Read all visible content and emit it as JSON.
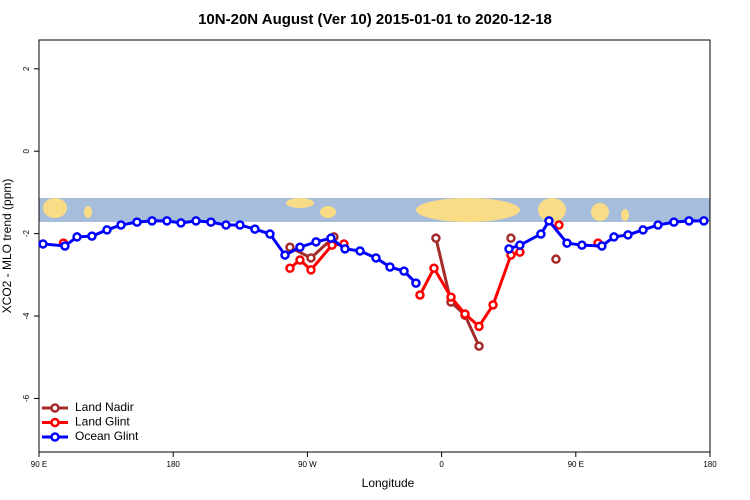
{
  "chart_data": {
    "type": "line",
    "title": "10N-20N August (Ver 10)   2015-01-01 to 2020-12-18",
    "x_label": "Longitude",
    "y_label": "XCO2 - MLO trend (ppm)",
    "xlim": [
      -270,
      180
    ],
    "xticks": [
      {
        "value": -270,
        "label": "90 E"
      },
      {
        "value": -180,
        "label": "180"
      },
      {
        "value": -90,
        "label": "90 W"
      },
      0,
      {
        "value": 90,
        "label": "90 E"
      },
      {
        "value": 180,
        "label": "180"
      }
    ],
    "ylim": [
      -7.3,
      2.7
    ],
    "yticks": [
      2,
      0,
      -2,
      -4,
      -6
    ],
    "legend": "bottom-left",
    "series": [
      {
        "name": "Land Nadir",
        "color": "#a52a2a",
        "x": [
          -101.7,
          -87.6,
          -72.2,
          null,
          -3.8,
          6.3,
          15.7,
          25.1,
          null,
          46.5,
          null,
          76.7
        ],
        "values": [
          -2.33,
          -2.59,
          -2.08,
          null,
          -2.11,
          -3.66,
          -3.98,
          -4.73,
          null,
          -2.11,
          null,
          -2.62
        ]
      },
      {
        "name": "Land Glint",
        "color": "#ff0000",
        "x": [
          -253.6,
          null,
          -101.7,
          -95.0,
          -87.6,
          -73.5,
          -65.5,
          null,
          -14.5,
          -5.1,
          6.3,
          15.7,
          25.1,
          34.5,
          46.5,
          52.5,
          null,
          78.7,
          null,
          104.9
        ],
        "values": [
          -2.23,
          null,
          -2.84,
          -2.64,
          -2.88,
          -2.28,
          -2.25,
          null,
          -3.49,
          -2.84,
          -3.54,
          -3.95,
          -4.25,
          -3.73,
          -2.52,
          -2.45,
          null,
          -1.79,
          null,
          -2.23
        ]
      },
      {
        "name": "Ocean Glint",
        "color": "#0000ff",
        "x": [
          -267.3,
          -252.6,
          -244.5,
          -234.5,
          -224.4,
          -215.0,
          -204.3,
          -194.2,
          -184.2,
          -174.8,
          -164.7,
          -154.7,
          -144.6,
          -135.2,
          -125.2,
          -115.1,
          -105.0,
          -95.0,
          -84.2,
          -74.2,
          -64.8,
          -54.7,
          -44.0,
          -34.6,
          -25.2,
          -17.2,
          null,
          45.2,
          52.5,
          66.6,
          72.0,
          84.1,
          94.1,
          107.5,
          115.6,
          125.0,
          135.1,
          145.1,
          155.8,
          165.9,
          175.9
        ],
        "values": [
          -2.25,
          -2.3,
          -2.08,
          -2.06,
          -1.91,
          -1.79,
          -1.72,
          -1.69,
          -1.69,
          -1.74,
          -1.69,
          -1.72,
          -1.79,
          -1.79,
          -1.89,
          -2.01,
          -2.52,
          -2.33,
          -2.2,
          -2.11,
          -2.37,
          -2.42,
          -2.59,
          -2.81,
          -2.91,
          -3.2,
          null,
          -2.37,
          -2.28,
          -2.01,
          -1.69,
          -2.23,
          -2.28,
          -2.3,
          -2.08,
          -2.03,
          -1.91,
          -1.79,
          -1.72,
          -1.69,
          -1.69
        ]
      }
    ]
  }
}
